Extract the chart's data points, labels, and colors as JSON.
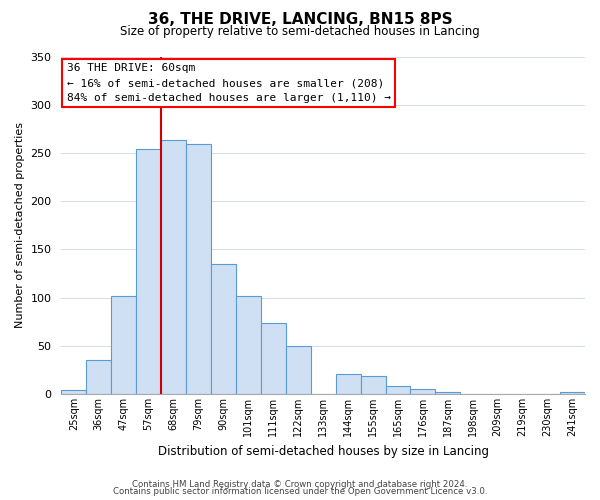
{
  "title": "36, THE DRIVE, LANCING, BN15 8PS",
  "subtitle": "Size of property relative to semi-detached houses in Lancing",
  "xlabel": "Distribution of semi-detached houses by size in Lancing",
  "ylabel": "Number of semi-detached properties",
  "bar_labels": [
    "25sqm",
    "36sqm",
    "47sqm",
    "57sqm",
    "68sqm",
    "79sqm",
    "90sqm",
    "101sqm",
    "111sqm",
    "122sqm",
    "133sqm",
    "144sqm",
    "155sqm",
    "165sqm",
    "176sqm",
    "187sqm",
    "198sqm",
    "209sqm",
    "219sqm",
    "230sqm",
    "241sqm"
  ],
  "bar_values": [
    4,
    35,
    102,
    254,
    263,
    259,
    135,
    102,
    74,
    50,
    0,
    21,
    19,
    8,
    5,
    2,
    0,
    0,
    0,
    0,
    2
  ],
  "bar_color": "#cfe0f4",
  "bar_edge_color": "#5b9bd5",
  "annotation_title": "36 THE DRIVE: 60sqm",
  "annotation_line1": "← 16% of semi-detached houses are smaller (208)",
  "annotation_line2": "84% of semi-detached houses are larger (1,110) →",
  "footer_line1": "Contains HM Land Registry data © Crown copyright and database right 2024.",
  "footer_line2": "Contains public sector information licensed under the Open Government Licence v3.0.",
  "ylim": [
    0,
    350
  ],
  "yticks": [
    0,
    50,
    100,
    150,
    200,
    250,
    300,
    350
  ],
  "background_color": "#ffffff",
  "grid_color": "#d0dce8",
  "red_line_color": "#cc0000"
}
